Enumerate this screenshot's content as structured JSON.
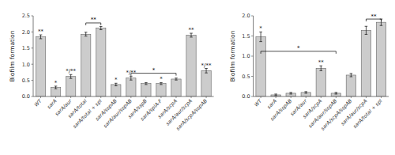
{
  "chart_data": [
    {
      "type": "bar",
      "categories": [
        "WT",
        "sarA",
        "sarA/aur",
        "sarA/total",
        "sarA/total + spl",
        "sarA/sspAB",
        "sarA/aur/sspAB",
        "sarA/sspB",
        "sarA/splA-F",
        "sarA/scpA",
        "sarA/aur/scpA",
        "sarA/scpA/sspAB"
      ],
      "values": [
        1.85,
        0.28,
        0.62,
        1.93,
        2.12,
        0.37,
        0.57,
        0.4,
        0.4,
        0.54,
        1.9,
        0.8
      ],
      "errors": [
        0.06,
        0.04,
        0.06,
        0.06,
        0.05,
        0.04,
        0.06,
        0.03,
        0.03,
        0.03,
        0.06,
        0.07
      ],
      "annotations": [
        "**",
        "*",
        "*/**",
        null,
        null,
        "*",
        "*/**",
        null,
        "*",
        null,
        "**",
        "*/**"
      ],
      "brackets": [
        {
          "from": 3,
          "to": 4,
          "label": "**",
          "height": 2.28
        },
        {
          "from": 6,
          "to": 9,
          "label": "*",
          "height": 0.72
        }
      ],
      "color": "#cccccc",
      "ylabel": "Biofilm formation",
      "ylim": [
        0,
        2.5
      ],
      "yticks": [
        {
          "value": 0,
          "label": "0.0"
        },
        0.5,
        {
          "value": 1,
          "label": "1.0"
        },
        1.5,
        {
          "value": 2,
          "label": "2.0"
        },
        2.5
      ],
      "grid": false
    },
    {
      "type": "bar",
      "categories": [
        "WT",
        "sarA",
        "sarA/sspAB",
        "sarA/aur",
        "sarA/scpA",
        "sarA/aur/sspAB",
        "sarA/scpA/sspAB",
        "sarA/aur/scpA",
        "sarA/total + spl"
      ],
      "values": [
        1.48,
        0.04,
        0.08,
        0.1,
        0.7,
        0.08,
        0.53,
        1.64,
        1.84
      ],
      "errors": [
        0.12,
        0.02,
        0.02,
        0.02,
        0.06,
        0.02,
        0.04,
        0.1,
        0.08
      ],
      "annotations": [
        "*",
        null,
        null,
        null,
        "**",
        null,
        null,
        null,
        null
      ],
      "brackets": [
        {
          "from": 0,
          "to": 5,
          "label": "*",
          "height": 1.12
        },
        {
          "from": 7,
          "to": 8,
          "label": "**",
          "height": 1.92
        }
      ],
      "color": "#cccccc",
      "ylabel": "Biofilm formation",
      "ylim": [
        0,
        2.0
      ],
      "yticks": [
        {
          "value": 0,
          "label": "0.0"
        },
        0.5,
        {
          "value": 1,
          "label": "1.0"
        },
        1.5,
        {
          "value": 2,
          "label": "2.0"
        }
      ],
      "grid": false
    }
  ]
}
